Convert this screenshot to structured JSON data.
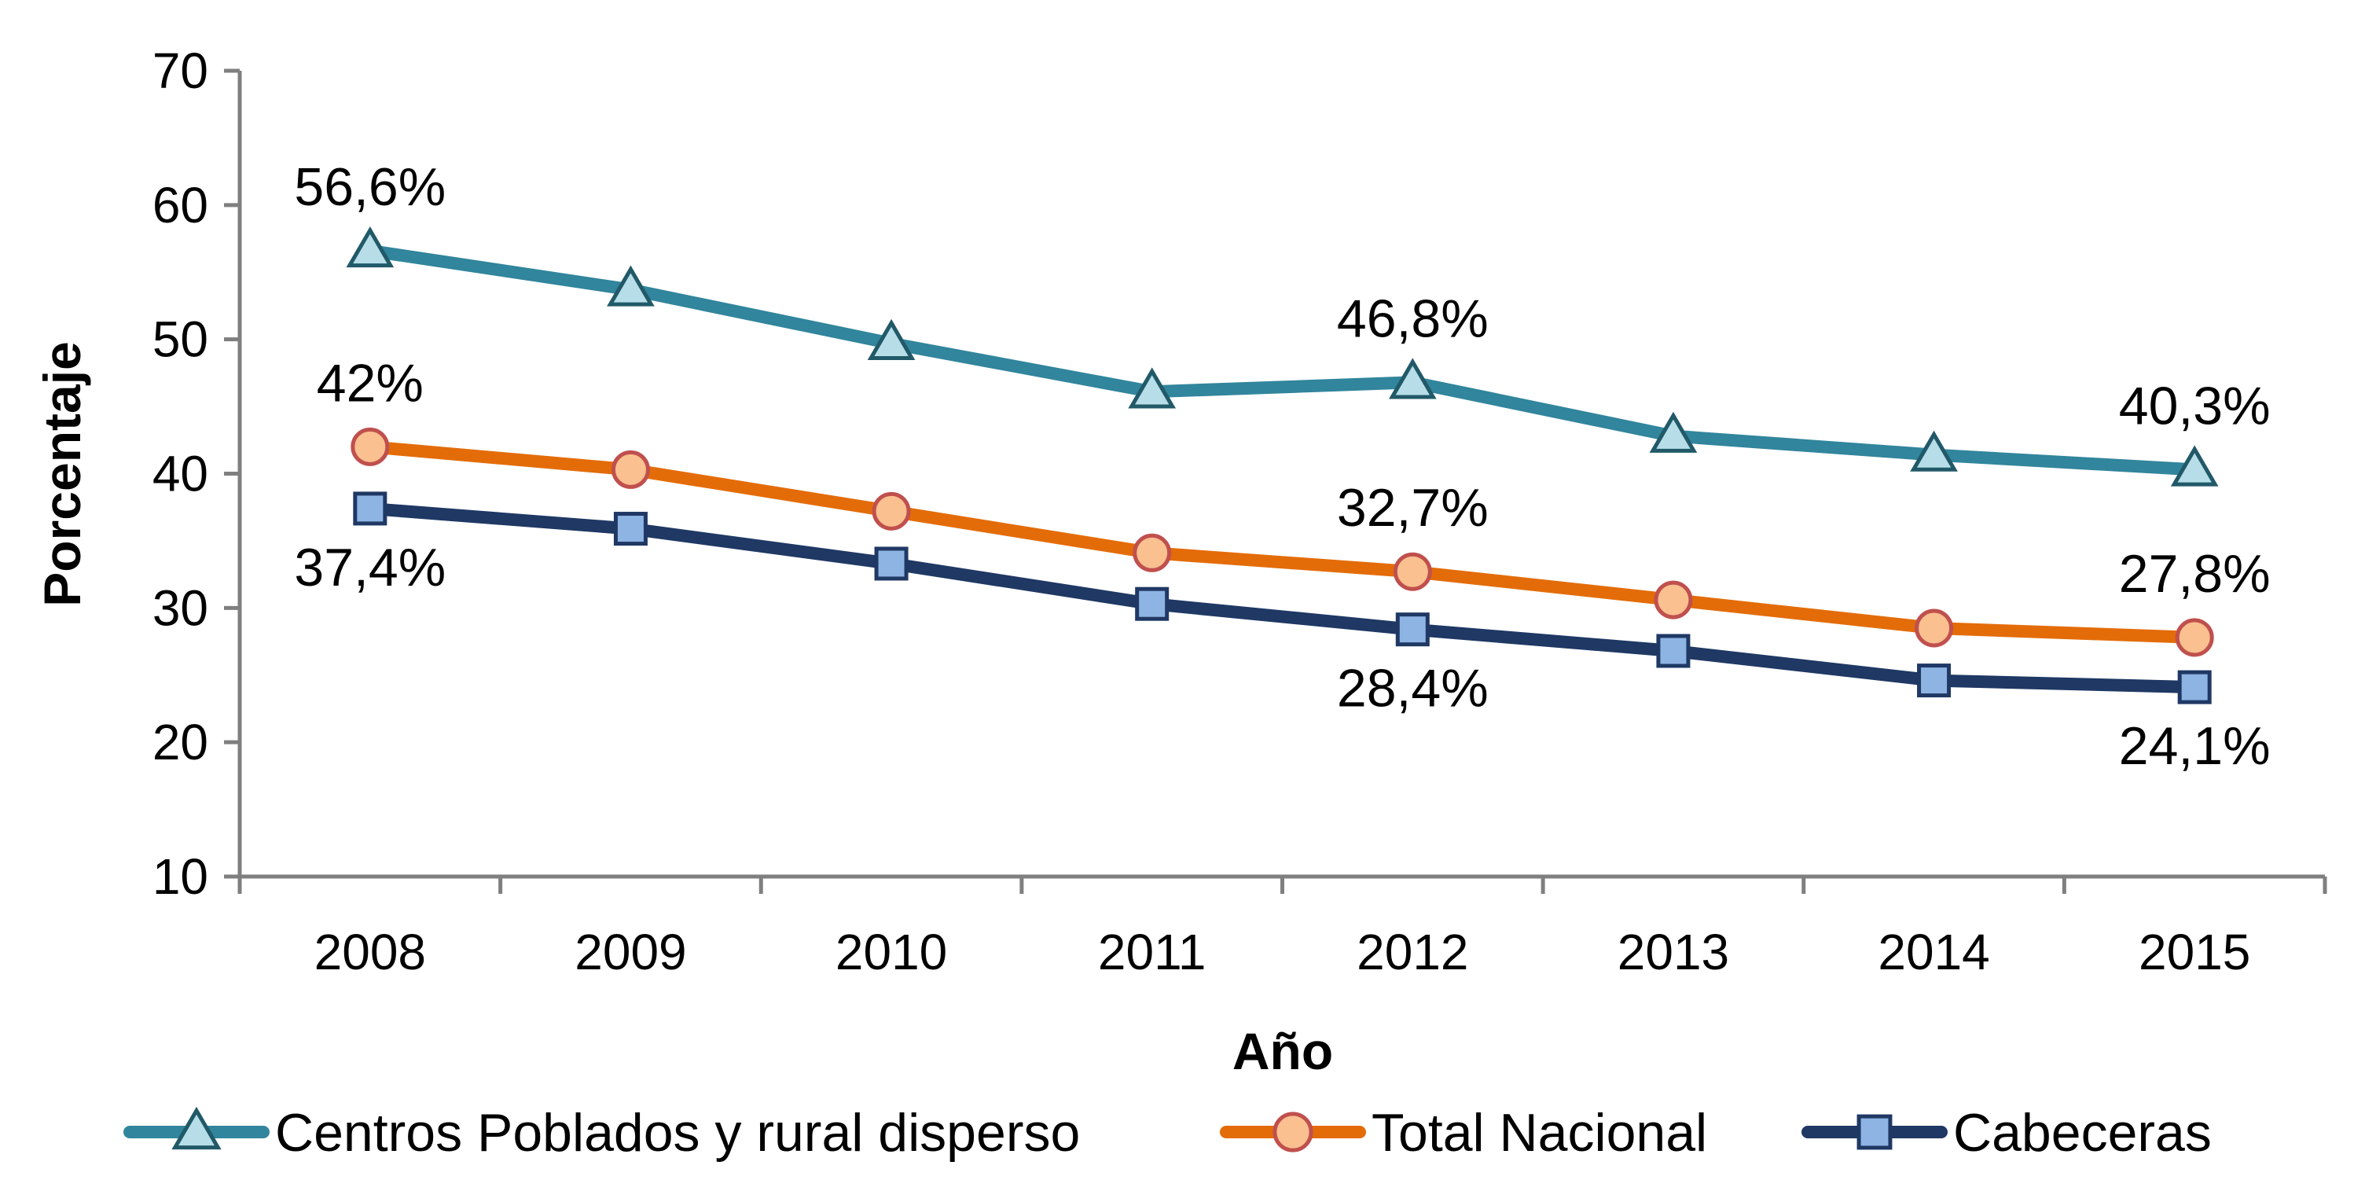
{
  "chart_data": {
    "type": "line",
    "title": "",
    "xlabel": "Año",
    "ylabel": "Porcentaje",
    "x": [
      "2008",
      "2009",
      "2010",
      "2011",
      "2012",
      "2013",
      "2014",
      "2015"
    ],
    "yticks": [
      "10",
      "20",
      "30",
      "40",
      "50",
      "60",
      "70"
    ],
    "ylim": [
      10,
      70
    ],
    "grid": false,
    "legend_position": "bottom",
    "series": [
      {
        "name": "Centros Poblados y rural disperso",
        "marker": "triangle",
        "color": "#31859c",
        "marker_fill": "#b7dee8",
        "marker_stroke": "#215968",
        "values": [
          56.6,
          53.7,
          49.7,
          46.1,
          46.8,
          42.8,
          41.4,
          40.3
        ],
        "labels": [
          {
            "index": 0,
            "text": "56,6%",
            "position": "above"
          },
          {
            "index": 4,
            "text": "46,8%",
            "position": "above"
          },
          {
            "index": 7,
            "text": "40,3%",
            "position": "above"
          }
        ]
      },
      {
        "name": "Total Nacional",
        "marker": "circle",
        "color": "#e36c09",
        "marker_fill": "#fac090",
        "marker_stroke": "#c0504d",
        "values": [
          42.0,
          40.3,
          37.2,
          34.1,
          32.7,
          30.6,
          28.5,
          27.8
        ],
        "labels": [
          {
            "index": 0,
            "text": "42%",
            "position": "above"
          },
          {
            "index": 4,
            "text": "32,7%",
            "position": "above"
          },
          {
            "index": 7,
            "text": "27,8%",
            "position": "above"
          }
        ]
      },
      {
        "name": "Cabeceras",
        "marker": "square",
        "color": "#1f3864",
        "marker_fill": "#8eb4e3",
        "marker_stroke": "#1f3864",
        "values": [
          37.4,
          35.9,
          33.3,
          30.3,
          28.4,
          26.8,
          24.6,
          24.1
        ],
        "labels": [
          {
            "index": 0,
            "text": "37,4%",
            "position": "below"
          },
          {
            "index": 4,
            "text": "28,4%",
            "position": "below"
          },
          {
            "index": 7,
            "text": "24,1%",
            "position": "below"
          }
        ]
      }
    ]
  }
}
